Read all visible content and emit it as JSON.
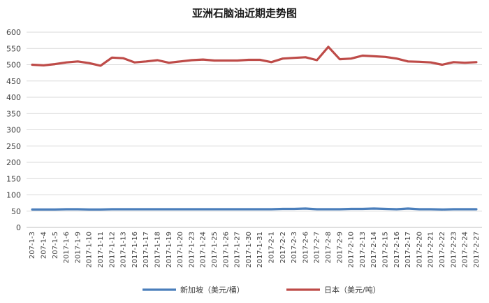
{
  "chart_data": {
    "type": "line",
    "title": "亚洲石脑油近期走势图",
    "ylim": [
      0,
      600
    ],
    "yticks": [
      0,
      50,
      100,
      150,
      200,
      250,
      300,
      350,
      400,
      450,
      500,
      550,
      600
    ],
    "grid": true,
    "legend_position": "bottom",
    "categories": [
      "207-1-3",
      "207-1-4",
      "207-1-5",
      "2017-1-6",
      "2017-1-9",
      "2017-1-10",
      "2017-1-11",
      "2017-1-12",
      "2017-1-13",
      "2017-1-16",
      "2017-1-17",
      "2017-1-18",
      "2017-1-19",
      "2017-1-20",
      "2017-1-23",
      "2017-1-24",
      "2017-1-25",
      "2017-1-26",
      "2017-1-27",
      "2017-1-30",
      "2017-1-31",
      "2017-2-1",
      "2017-2-2",
      "2017-2-3",
      "2017-2-6",
      "2017-2-7",
      "2017-2-8",
      "2017-2-9",
      "2017-2-10",
      "2017-2-13",
      "2017-2-14",
      "2017-2-15",
      "2017-2-16",
      "2017-2-17",
      "2017-2-20",
      "2017-2-21",
      "2017-2-22",
      "2017-2-23",
      "2017-2-24",
      "2017-2-27"
    ],
    "series": [
      {
        "name": "新加坡（美元/桶）",
        "color": "#4a7ebb",
        "values": [
          55,
          55,
          55,
          56,
          56,
          55,
          55,
          56,
          56,
          56,
          56,
          56,
          56,
          56,
          56,
          56,
          56,
          56,
          56,
          56,
          56,
          56,
          57,
          57,
          58,
          56,
          56,
          56,
          57,
          57,
          58,
          57,
          56,
          58,
          56,
          56,
          55,
          56,
          56,
          56
        ]
      },
      {
        "name": "日本（美元/吨）",
        "color": "#be4b48",
        "values": [
          500,
          498,
          502,
          507,
          510,
          505,
          497,
          522,
          520,
          507,
          510,
          514,
          506,
          510,
          514,
          516,
          513,
          513,
          513,
          515,
          515,
          508,
          519,
          521,
          523,
          514,
          555,
          517,
          519,
          528,
          526,
          524,
          519,
          510,
          509,
          507,
          500,
          508,
          506,
          508
        ]
      }
    ]
  }
}
